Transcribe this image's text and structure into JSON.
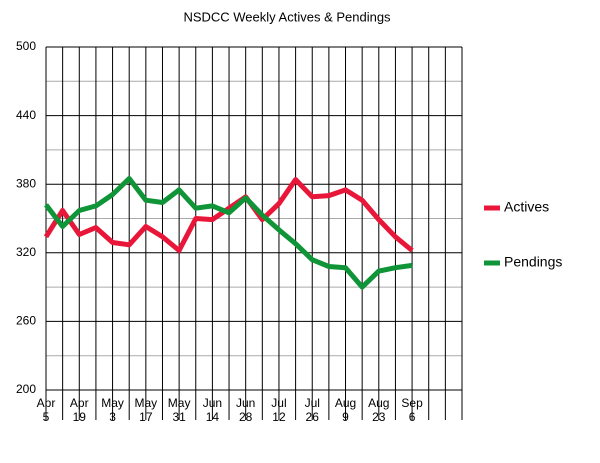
{
  "chart_data": {
    "type": "line",
    "title": "NSDCC Weekly Actives & Pendings",
    "categories": [
      "Apr 5",
      null,
      "Apr 19",
      null,
      "May 3",
      null,
      "May 17",
      null,
      "May 31",
      null,
      "Jun 14",
      null,
      "Jun 28",
      null,
      "Jul 12",
      null,
      "Jul 26",
      null,
      "Aug 9",
      null,
      "Aug 23",
      null,
      "Sep 6",
      null,
      null,
      null
    ],
    "series": [
      {
        "name": "Actives",
        "color": "#e8173a",
        "values": [
          334,
          357,
          336,
          342,
          329,
          327,
          343,
          334,
          322,
          350,
          349,
          359,
          369,
          349,
          363,
          384,
          369,
          370,
          375,
          366,
          349,
          334,
          322,
          null,
          null,
          null
        ]
      },
      {
        "name": "Pendings",
        "color": "#0f9438",
        "values": [
          362,
          343,
          357,
          361,
          371,
          385,
          366,
          364,
          375,
          359,
          361,
          355,
          368,
          353,
          340,
          328,
          314,
          308,
          307,
          290,
          304,
          307,
          309,
          null,
          null,
          null
        ]
      }
    ],
    "ylim": [
      200,
      500
    ],
    "yticks": [
      200,
      260,
      320,
      380,
      440,
      500
    ],
    "minor_yticks": [
      230,
      290,
      350,
      410,
      470
    ],
    "grid": true,
    "legend": "right"
  }
}
